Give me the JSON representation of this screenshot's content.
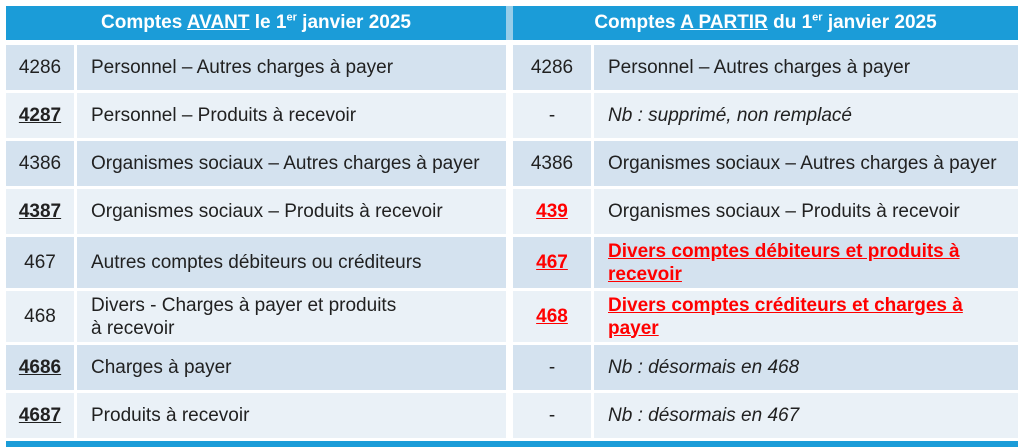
{
  "colors": {
    "accent": "#1b9cd8",
    "header-divider": "#96cde9",
    "row-dark": "#d4e2ef",
    "row-light": "#eaf1f7",
    "ink": "#212121",
    "red": "#ff0000"
  },
  "header": {
    "left": {
      "pre": "Comptes ",
      "underlined": "AVANT",
      "mid": " le 1",
      "sup": "er",
      "post": " janvier 2025"
    },
    "right": {
      "pre": "Comptes ",
      "underlined": "A PARTIR",
      "mid": " du 1",
      "sup": "er",
      "post": " janvier 2025"
    }
  },
  "rows": [
    {
      "shade": "dark",
      "left": {
        "code": "4286",
        "code_style": "",
        "label": "Personnel – Autres charges à payer",
        "label_style": ""
      },
      "right": {
        "code": "4286",
        "code_style": "",
        "label": "Personnel – Autres charges à payer",
        "label_style": ""
      }
    },
    {
      "shade": "light",
      "left": {
        "code": "4287",
        "code_style": "code-u",
        "label": "Personnel – Produits à recevoir",
        "label_style": ""
      },
      "right": {
        "code": "-",
        "code_style": "",
        "label": "Nb : supprimé, non remplacé",
        "label_style": "italic"
      }
    },
    {
      "shade": "dark",
      "left": {
        "code": "4386",
        "code_style": "",
        "label": "Organismes sociaux – Autres charges à payer",
        "label_style": ""
      },
      "right": {
        "code": "4386",
        "code_style": "",
        "label": "Organismes sociaux – Autres charges à payer",
        "label_style": ""
      }
    },
    {
      "shade": "light",
      "left": {
        "code": "4387",
        "code_style": "code-u",
        "label": "Organismes sociaux – Produits à recevoir",
        "label_style": ""
      },
      "right": {
        "code": "439",
        "code_style": "code-red",
        "label": "Organismes sociaux – Produits à recevoir",
        "label_style": ""
      }
    },
    {
      "shade": "dark",
      "tall": true,
      "left": {
        "code": "467",
        "code_style": "",
        "label": "Autres comptes débiteurs ou créditeurs",
        "label_style": ""
      },
      "right": {
        "code": "467",
        "code_style": "code-red",
        "label": "Divers comptes débiteurs et produits à\nrecevoir",
        "label_style": "label-red"
      }
    },
    {
      "shade": "light",
      "tall": true,
      "left": {
        "code": "468",
        "code_style": "",
        "label": "Divers - Charges à payer et produits\nà recevoir",
        "label_style": ""
      },
      "right": {
        "code": "468",
        "code_style": "code-red",
        "label": "Divers comptes créditeurs et charges à\npayer",
        "label_style": "label-red"
      }
    },
    {
      "shade": "dark",
      "left": {
        "code": "4686",
        "code_style": "code-u",
        "label": "Charges à payer",
        "label_style": ""
      },
      "right": {
        "code": "-",
        "code_style": "",
        "label": "Nb : désormais en 468",
        "label_style": "italic"
      }
    },
    {
      "shade": "light",
      "left": {
        "code": "4687",
        "code_style": "code-u",
        "label": "Produits à recevoir",
        "label_style": ""
      },
      "right": {
        "code": "-",
        "code_style": "",
        "label": "Nb : désormais en 467",
        "label_style": "italic"
      }
    }
  ]
}
